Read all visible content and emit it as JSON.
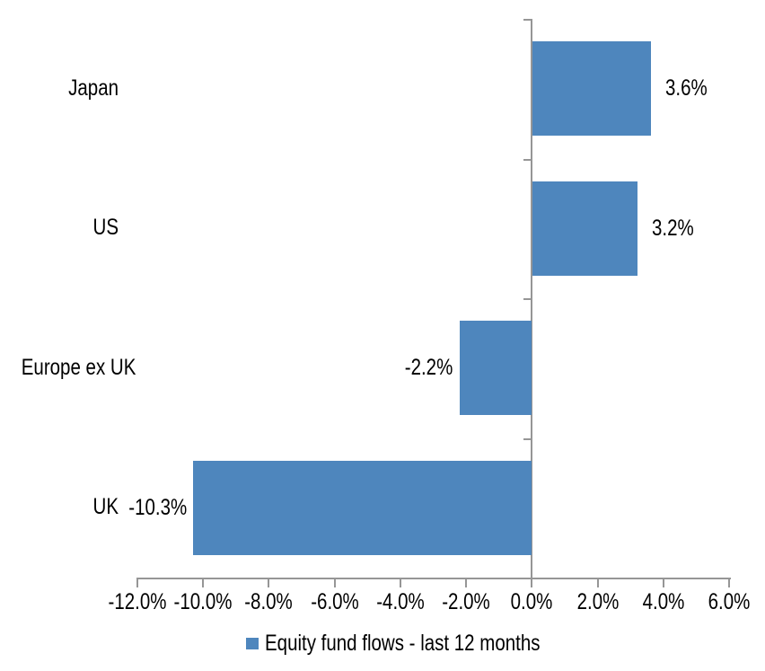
{
  "chart_data": {
    "type": "bar",
    "orientation": "horizontal",
    "title": "",
    "categories": [
      "Japan",
      "US",
      "Europe ex UK",
      "UK"
    ],
    "series": [
      {
        "name": "Equity fund flows - last 12 months",
        "values": [
          3.6,
          3.2,
          -2.2,
          -10.3
        ],
        "data_labels": [
          "3.6%",
          "3.2%",
          "-2.2%",
          "-10.3%"
        ],
        "color": "#4E86BD"
      }
    ],
    "x_axis": {
      "min": -12,
      "max": 6,
      "tick_step": 2,
      "unit": "%",
      "tick_labels": [
        "-12.0%",
        "-10.0%",
        "-8.0%",
        "-6.0%",
        "-4.0%",
        "-2.0%",
        "0.0%",
        "2.0%",
        "4.0%",
        "6.0%"
      ]
    },
    "xlim": [
      -12,
      6
    ],
    "grid": false,
    "legend": {
      "position": "bottom",
      "label": "Equity fund flows - last 12 months",
      "marker_color": "#4E86BD"
    },
    "colors": {
      "bar": "#4E86BD",
      "axis": "#969696",
      "text": "#000000",
      "background": "#FFFFFF"
    }
  }
}
